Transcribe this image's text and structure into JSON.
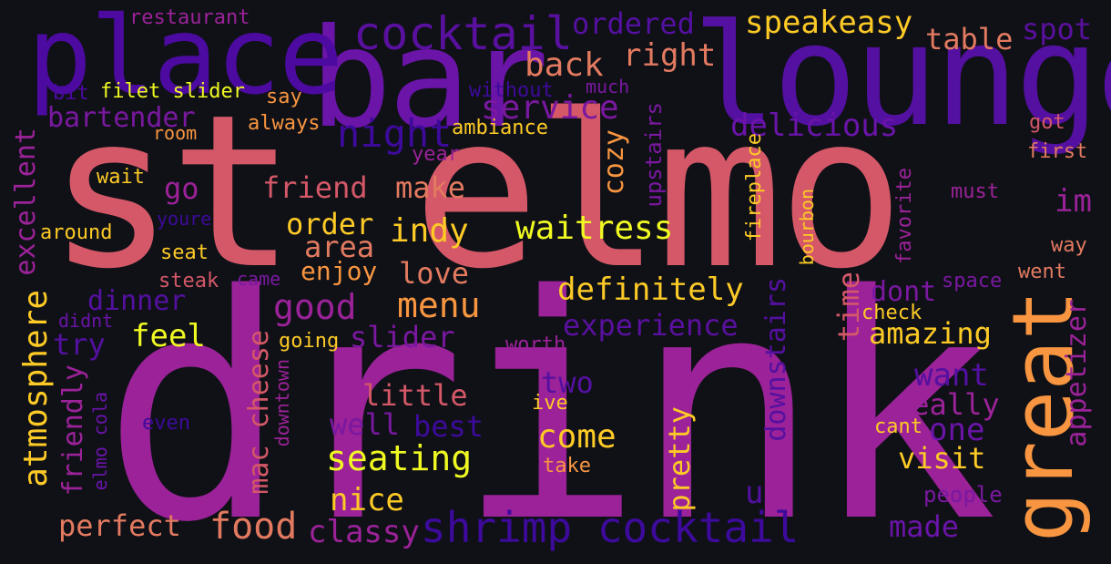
{
  "background": "#0f1117",
  "palette": {
    "deep_indigo": "#3d0a9b",
    "violet": "#6a14a8",
    "magenta": "#9b2298",
    "pink_red": "#d45868",
    "orange": "#f89540",
    "gold": "#fdca26",
    "yellow": "#f0f921"
  },
  "words": [
    {
      "text": "st elmo",
      "color": "#d45868"
    },
    {
      "text": "drink",
      "color": "#9b2298"
    },
    {
      "text": "lounge",
      "color": "#5410a0"
    },
    {
      "text": "bar",
      "color": "#6a14a8"
    },
    {
      "text": "place",
      "color": "#4c0aa0"
    },
    {
      "text": "great",
      "color": "#f89540"
    },
    {
      "text": "shrimp cocktail",
      "color": "#3d0a9b"
    },
    {
      "text": "cocktail",
      "color": "#5a109e"
    },
    {
      "text": "speakeasy",
      "color": "#fdca26"
    },
    {
      "text": "ordered",
      "color": "#5410a0"
    },
    {
      "text": "table",
      "color": "#e37a60"
    },
    {
      "text": "spot",
      "color": "#5a109e"
    },
    {
      "text": "right",
      "color": "#e37a60"
    },
    {
      "text": "back",
      "color": "#e37a60"
    },
    {
      "text": "restaurant",
      "color": "#9b2298"
    },
    {
      "text": "service",
      "color": "#7a18a0"
    },
    {
      "text": "night",
      "color": "#3d0a9b"
    },
    {
      "text": "delicious",
      "color": "#6a14a8"
    },
    {
      "text": "bartender",
      "color": "#7a18a0"
    },
    {
      "text": "filet slider",
      "color": "#f0f921"
    },
    {
      "text": "bit",
      "color": "#4c0aa0"
    },
    {
      "text": "say",
      "color": "#f89540"
    },
    {
      "text": "without",
      "color": "#3d0a9b"
    },
    {
      "text": "much",
      "color": "#7a18a0"
    },
    {
      "text": "got",
      "color": "#d45868"
    },
    {
      "text": "first",
      "color": "#e37a60"
    },
    {
      "text": "always",
      "color": "#f89540"
    },
    {
      "text": "room",
      "color": "#f89540"
    },
    {
      "text": "ambiance",
      "color": "#fdca26"
    },
    {
      "text": "year",
      "color": "#9b2298"
    },
    {
      "text": "wait",
      "color": "#fdca26"
    },
    {
      "text": "go",
      "color": "#9b2298"
    },
    {
      "text": "friend",
      "color": "#d45868"
    },
    {
      "text": "make",
      "color": "#e37a60"
    },
    {
      "text": "cozy",
      "color": "#f89540"
    },
    {
      "text": "upstairs",
      "color": "#7a18a0"
    },
    {
      "text": "fireplace",
      "color": "#fdca26"
    },
    {
      "text": "bourbon",
      "color": "#fdca26"
    },
    {
      "text": "favorite",
      "color": "#9b2298"
    },
    {
      "text": "must",
      "color": "#9b2298"
    },
    {
      "text": "im",
      "color": "#9b2298"
    },
    {
      "text": "excellent",
      "color": "#9b2298"
    },
    {
      "text": "around",
      "color": "#fdca26"
    },
    {
      "text": "youre",
      "color": "#3d0a9b"
    },
    {
      "text": "order",
      "color": "#fdca26"
    },
    {
      "text": "indy",
      "color": "#fdca26"
    },
    {
      "text": "waitress",
      "color": "#f0f921"
    },
    {
      "text": "area",
      "color": "#e37a60"
    },
    {
      "text": "seat",
      "color": "#fdca26"
    },
    {
      "text": "enjoy",
      "color": "#f89540"
    },
    {
      "text": "love",
      "color": "#e37a60"
    },
    {
      "text": "way",
      "color": "#e37a60"
    },
    {
      "text": "went",
      "color": "#e37a60"
    },
    {
      "text": "steak",
      "color": "#d45868"
    },
    {
      "text": "came",
      "color": "#7a18a0"
    },
    {
      "text": "space",
      "color": "#7a18a0"
    },
    {
      "text": "definitely",
      "color": "#fdca26"
    },
    {
      "text": "time",
      "color": "#d45868"
    },
    {
      "text": "dont",
      "color": "#7a18a0"
    },
    {
      "text": "dinner",
      "color": "#5410a0"
    },
    {
      "text": "good",
      "color": "#9b2298"
    },
    {
      "text": "menu",
      "color": "#f89540"
    },
    {
      "text": "downstairs",
      "color": "#5410a0"
    },
    {
      "text": "check",
      "color": "#fdca26"
    },
    {
      "text": "amazing",
      "color": "#fdca26"
    },
    {
      "text": "appetizer",
      "color": "#9b2298"
    },
    {
      "text": "atmosphere",
      "color": "#fdca26"
    },
    {
      "text": "didnt",
      "color": "#6a14a8"
    },
    {
      "text": "experience",
      "color": "#5a109e"
    },
    {
      "text": "try",
      "color": "#5410a0"
    },
    {
      "text": "feel",
      "color": "#f0f921"
    },
    {
      "text": "going",
      "color": "#fdca26"
    },
    {
      "text": "slider",
      "color": "#7a18a0"
    },
    {
      "text": "worth",
      "color": "#9b2298"
    },
    {
      "text": "want",
      "color": "#5410a0"
    },
    {
      "text": "two",
      "color": "#5410a0"
    },
    {
      "text": "little",
      "color": "#d45868"
    },
    {
      "text": "ive",
      "color": "#fdca26"
    },
    {
      "text": "really",
      "color": "#9b2298"
    },
    {
      "text": "mac cheese",
      "color": "#d45868"
    },
    {
      "text": "downtown",
      "color": "#9b2298"
    },
    {
      "text": "friendly",
      "color": "#9b2298"
    },
    {
      "text": "elmo cola",
      "color": "#6a14a8"
    },
    {
      "text": "even",
      "color": "#3d0a9b"
    },
    {
      "text": "well",
      "color": "#7a18a0"
    },
    {
      "text": "best",
      "color": "#3d0a9b"
    },
    {
      "text": "cant",
      "color": "#fdca26"
    },
    {
      "text": "one",
      "color": "#6a14a8"
    },
    {
      "text": "come",
      "color": "#fdca26"
    },
    {
      "text": "pretty",
      "color": "#fdca26"
    },
    {
      "text": "u",
      "color": "#5410a0"
    },
    {
      "text": "seating",
      "color": "#f0f921"
    },
    {
      "text": "visit",
      "color": "#fdca26"
    },
    {
      "text": "take",
      "color": "#f89540"
    },
    {
      "text": "nice",
      "color": "#fdca26"
    },
    {
      "text": "people",
      "color": "#7a18a0"
    },
    {
      "text": "perfect",
      "color": "#e37a60"
    },
    {
      "text": "food",
      "color": "#e37a60"
    },
    {
      "text": "classy",
      "color": "#9b2298"
    },
    {
      "text": "made",
      "color": "#6a14a8"
    }
  ]
}
